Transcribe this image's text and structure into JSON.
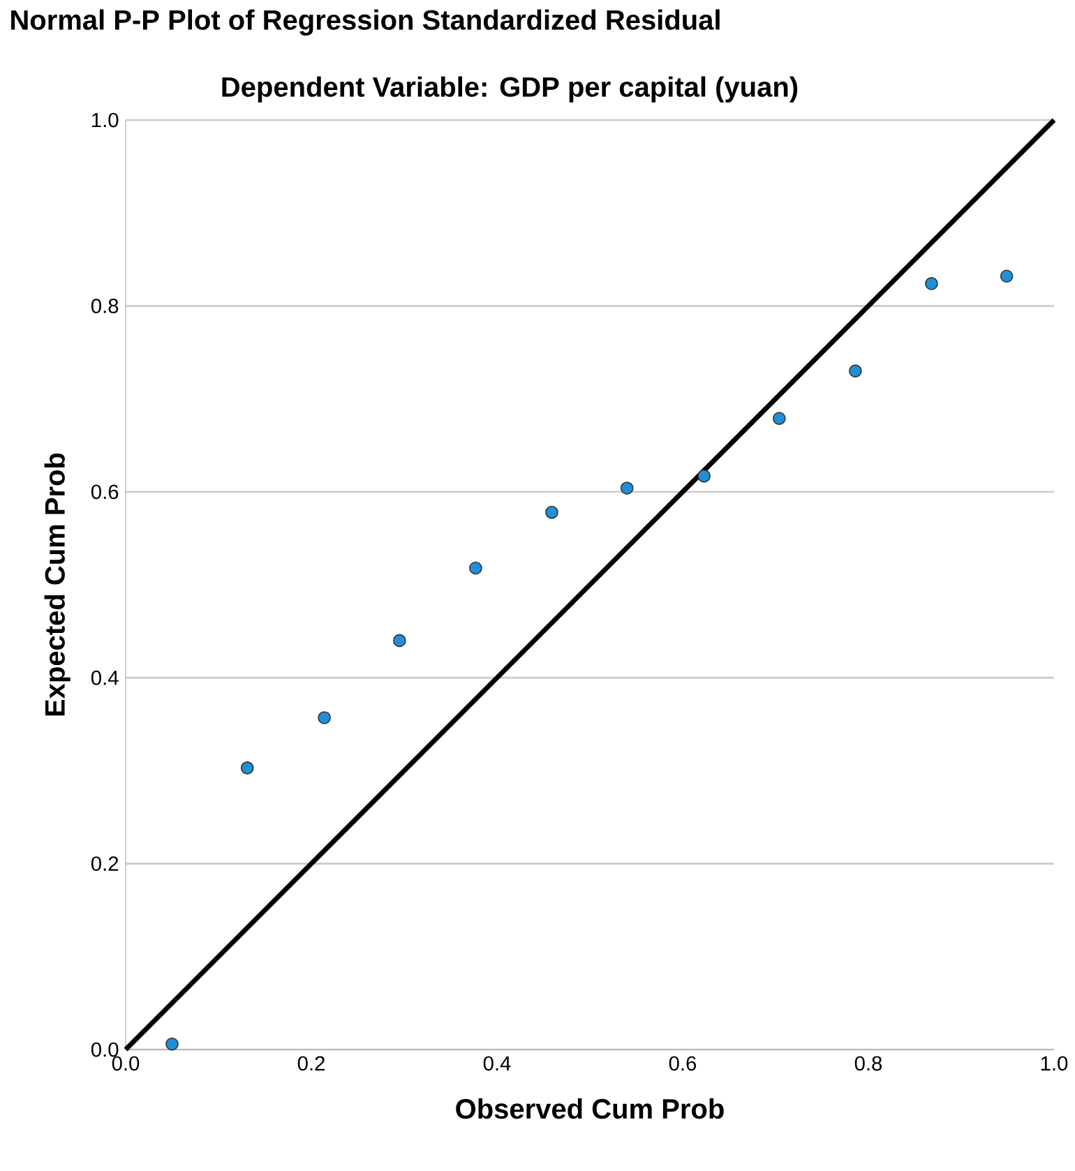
{
  "chart_data": {
    "type": "scatter",
    "title": "Normal P-P Plot of Regression Standardized Residual",
    "subtitle": "Dependent Variable: GDP per capital (yuan)",
    "xlabel": "Observed Cum Prob",
    "ylabel": "Expected Cum Prob",
    "series": [
      {
        "color": "#1f8fd8",
        "marker": "circle",
        "x": [
          0.05,
          0.131,
          0.214,
          0.295,
          0.377,
          0.459,
          0.54,
          0.623,
          0.704,
          0.786,
          0.868,
          0.949
        ],
        "values": [
          0.006,
          0.303,
          0.357,
          0.44,
          0.518,
          0.578,
          0.604,
          0.617,
          0.679,
          0.73,
          0.824,
          0.832
        ]
      },
      {
        "type": "line",
        "color": "#000000",
        "marker": "none",
        "line_style": "solid",
        "x": [
          0,
          1
        ],
        "values": [
          0,
          1
        ]
      }
    ],
    "xlim": [
      0,
      1
    ],
    "ylim": [
      0,
      1
    ],
    "xticks": [
      {
        "value": 0,
        "label": "0.0"
      },
      {
        "value": 0.2,
        "label": "0.2"
      },
      {
        "value": 0.4,
        "label": "0.4"
      },
      {
        "value": 0.6,
        "label": "0.6"
      },
      {
        "value": 0.8,
        "label": "0.8"
      },
      {
        "value": 1,
        "label": "1.0"
      }
    ],
    "yticks": [
      {
        "value": 0,
        "label": "0.0"
      },
      {
        "value": 0.2,
        "label": "0.2"
      },
      {
        "value": 0.4,
        "label": "0.4"
      },
      {
        "value": 0.6,
        "label": "0.6"
      },
      {
        "value": 0.8,
        "label": "0.8"
      },
      {
        "value": 1,
        "label": "1.0"
      }
    ],
    "grid": "y"
  }
}
